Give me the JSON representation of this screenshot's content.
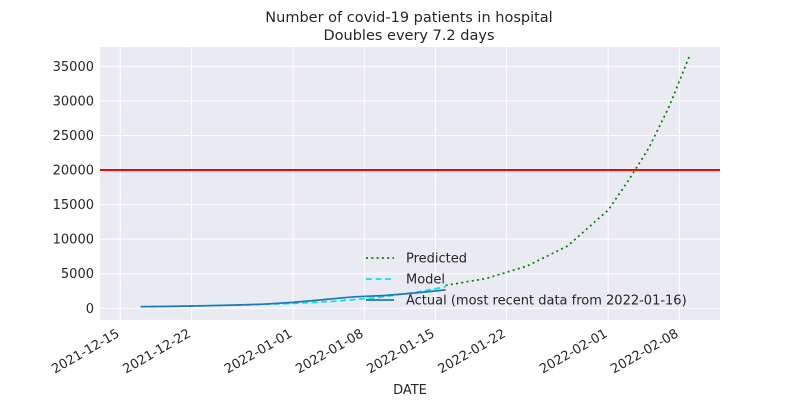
{
  "chart_data": {
    "type": "line",
    "title": "Number of covid-19 patients in hospital",
    "subtitle": "Doubles every 7.2 days",
    "xlabel": "DATE",
    "ylabel": "",
    "xlim": [
      "2021-12-13",
      "2022-02-12"
    ],
    "ylim": [
      -1700,
      37800
    ],
    "x_ticks": [
      "2021-12-15",
      "2021-12-22",
      "2022-01-01",
      "2022-01-08",
      "2022-01-15",
      "2022-01-22",
      "2022-02-01",
      "2022-02-08"
    ],
    "y_ticks": [
      0,
      5000,
      10000,
      15000,
      20000,
      25000,
      30000,
      35000
    ],
    "grid": true,
    "legend_position": "lower center",
    "threshold": {
      "value": 20000,
      "color": "#ff0000"
    },
    "series": [
      {
        "name": "Predicted",
        "style": "dotted",
        "color": "#008000",
        "x": [
          "2022-01-16",
          "2022-01-20",
          "2022-01-24",
          "2022-01-28",
          "2022-02-01",
          "2022-02-03",
          "2022-02-05",
          "2022-02-07",
          "2022-02-09"
        ],
        "values": [
          3300,
          4300,
          6100,
          9000,
          14200,
          18500,
          23200,
          29200,
          36500
        ]
      },
      {
        "name": "Model",
        "style": "dashed",
        "color": "#00e5ee",
        "x": [
          "2021-12-17",
          "2021-12-22",
          "2021-12-27",
          "2022-01-01",
          "2022-01-05",
          "2022-01-09",
          "2022-01-13",
          "2022-01-16"
        ],
        "values": [
          230,
          320,
          470,
          700,
          1000,
          1500,
          2300,
          3100
        ]
      },
      {
        "name": "Actual (most recent data from 2022-01-16)",
        "style": "solid",
        "color": "#1f77b4",
        "x": [
          "2021-12-17",
          "2021-12-20",
          "2021-12-23",
          "2021-12-26",
          "2021-12-29",
          "2022-01-01",
          "2022-01-04",
          "2022-01-07",
          "2022-01-10",
          "2022-01-13",
          "2022-01-16"
        ],
        "values": [
          230,
          270,
          360,
          460,
          590,
          850,
          1250,
          1650,
          1850,
          2200,
          2650
        ]
      }
    ]
  }
}
